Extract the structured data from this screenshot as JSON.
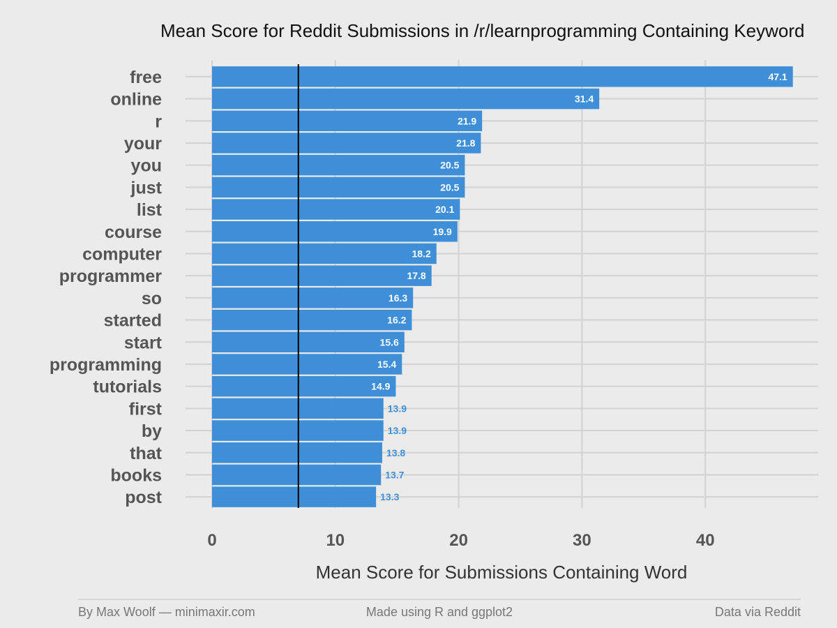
{
  "chart_data": {
    "type": "bar",
    "orientation": "horizontal",
    "title": "Mean Score for Reddit Submissions in /r/learnprogramming Containing Keyword",
    "xlabel": "Mean Score for Submissions Containing Word",
    "ylabel": "",
    "categories": [
      "free",
      "online",
      "r",
      "your",
      "you",
      "just",
      "list",
      "course",
      "computer",
      "programmer",
      "so",
      "started",
      "start",
      "programming",
      "tutorials",
      "first",
      "by",
      "that",
      "books",
      "post"
    ],
    "values": [
      47.1,
      31.4,
      21.9,
      21.8,
      20.5,
      20.5,
      20.1,
      19.9,
      18.2,
      17.8,
      16.3,
      16.2,
      15.6,
      15.4,
      14.9,
      13.9,
      13.9,
      13.8,
      13.7,
      13.3
    ],
    "data_labels": [
      "47.1",
      "31.4",
      "21.9",
      "21.8",
      "20.5",
      "20.5",
      "20.1",
      "19.9",
      "18.2",
      "17.8",
      "16.3",
      "16.2",
      "15.6",
      "15.4",
      "14.9",
      "13.9",
      "13.9",
      "13.8",
      "13.7",
      "13.3"
    ],
    "xlim": [
      0,
      49
    ],
    "xticks": [
      0,
      10,
      20,
      30,
      40
    ],
    "xtick_labels": [
      "0",
      "10",
      "20",
      "30",
      "40"
    ],
    "reference_line": 7,
    "grid": true,
    "legend": "none"
  },
  "colors": {
    "background": "#ebebeb",
    "bar": "#3f8fd8",
    "grid": "#d2d2d2",
    "reference_line": "#000000",
    "label_inside": "#ffffff",
    "label_outside": "#3f8fd8",
    "footer_rule": "#bbbbbb"
  },
  "footer": {
    "left": "By Max Woolf — minimaxir.com",
    "center": "Made using R and ggplot2",
    "right": "Data via Reddit"
  }
}
